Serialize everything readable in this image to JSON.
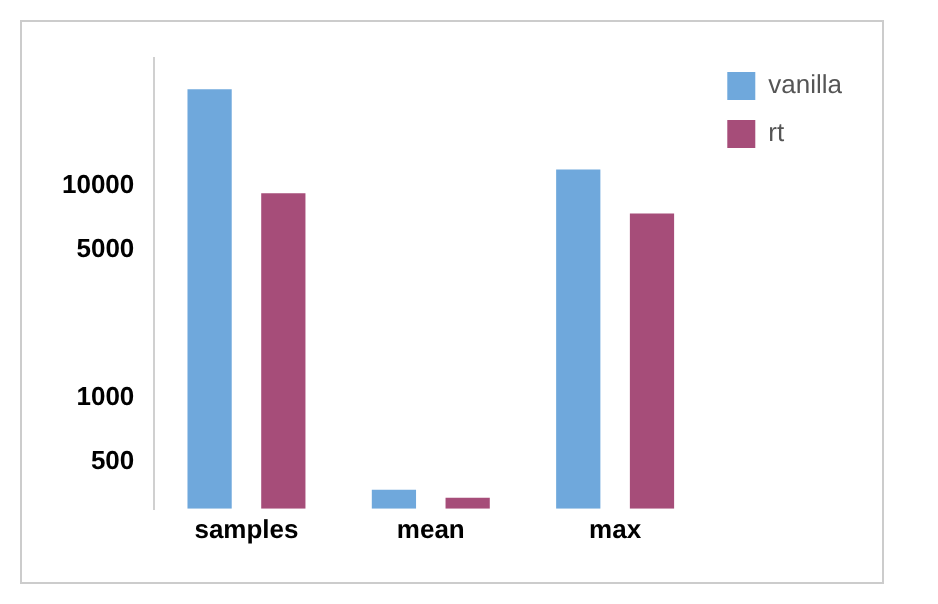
{
  "chart_data": {
    "type": "bar",
    "categories": [
      "samples",
      "mean",
      "max"
    ],
    "series": [
      {
        "name": "vanilla",
        "color": "#6fa8dc",
        "values": [
          28400,
          369,
          11900
        ]
      },
      {
        "name": "rt",
        "color": "#a64d79",
        "values": [
          9200,
          338,
          7380
        ]
      }
    ],
    "log": "y",
    "ylim": [
      300,
      40000
    ],
    "yticks": [
      500,
      1000,
      5000,
      10000
    ],
    "grid": false,
    "legend": "top right"
  }
}
